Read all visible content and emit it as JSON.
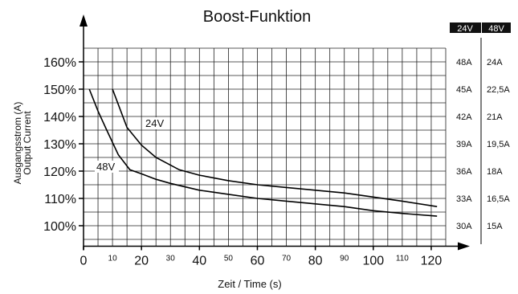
{
  "chart_data": {
    "type": "line",
    "title": "Boost-Funktion",
    "xlabel": "Zeit / Time (s)",
    "ylabel": [
      "Ausgangsstrom (A)",
      "Output Current"
    ],
    "xlim": [
      0,
      125
    ],
    "ylim": [
      90,
      170
    ],
    "grid": true,
    "x_ticks_major": [
      0,
      20,
      40,
      60,
      80,
      100,
      120
    ],
    "x_ticks_minor": [
      10,
      30,
      50,
      70,
      90,
      110
    ],
    "y_ticks": [
      {
        "value": 100,
        "label": "100%"
      },
      {
        "value": 110,
        "label": "110%"
      },
      {
        "value": 120,
        "label": "120%"
      },
      {
        "value": 130,
        "label": "130%"
      },
      {
        "value": 140,
        "label": "140%"
      },
      {
        "value": 150,
        "label": "150%"
      },
      {
        "value": 160,
        "label": "160%"
      }
    ],
    "right_axis": {
      "headers": [
        "24V",
        "48V"
      ],
      "rows": [
        {
          "value": 160,
          "a24": "48A",
          "a48": "24A"
        },
        {
          "value": 150,
          "a24": "45A",
          "a48": "22,5A"
        },
        {
          "value": 140,
          "a24": "42A",
          "a48": "21A"
        },
        {
          "value": 130,
          "a24": "39A",
          "a48": "19,5A"
        },
        {
          "value": 120,
          "a24": "36A",
          "a48": "18A"
        },
        {
          "value": 110,
          "a24": "33A",
          "a48": "16,5A"
        },
        {
          "value": 100,
          "a24": "30A",
          "a48": "15A"
        }
      ]
    },
    "series": [
      {
        "name": "24V",
        "x": [
          10,
          15,
          20,
          25,
          33,
          40,
          50,
          60,
          70,
          80,
          90,
          100,
          110,
          122
        ],
        "y": [
          150,
          136,
          129.5,
          125,
          120.5,
          118.5,
          116.5,
          115,
          114,
          113,
          112,
          110.5,
          109,
          107
        ]
      },
      {
        "name": "48V",
        "x": [
          2,
          5,
          8,
          12,
          16,
          20,
          25,
          30,
          40,
          50,
          60,
          70,
          80,
          90,
          100,
          110,
          122
        ],
        "y": [
          150,
          142,
          135,
          126,
          120.5,
          119,
          117,
          115.5,
          113,
          111.5,
          110,
          109,
          108,
          107,
          105.5,
          104.5,
          103.5
        ]
      }
    ],
    "curve_labels": [
      {
        "series": "24V",
        "text": "24V"
      },
      {
        "series": "48V",
        "text": "48V"
      }
    ]
  }
}
